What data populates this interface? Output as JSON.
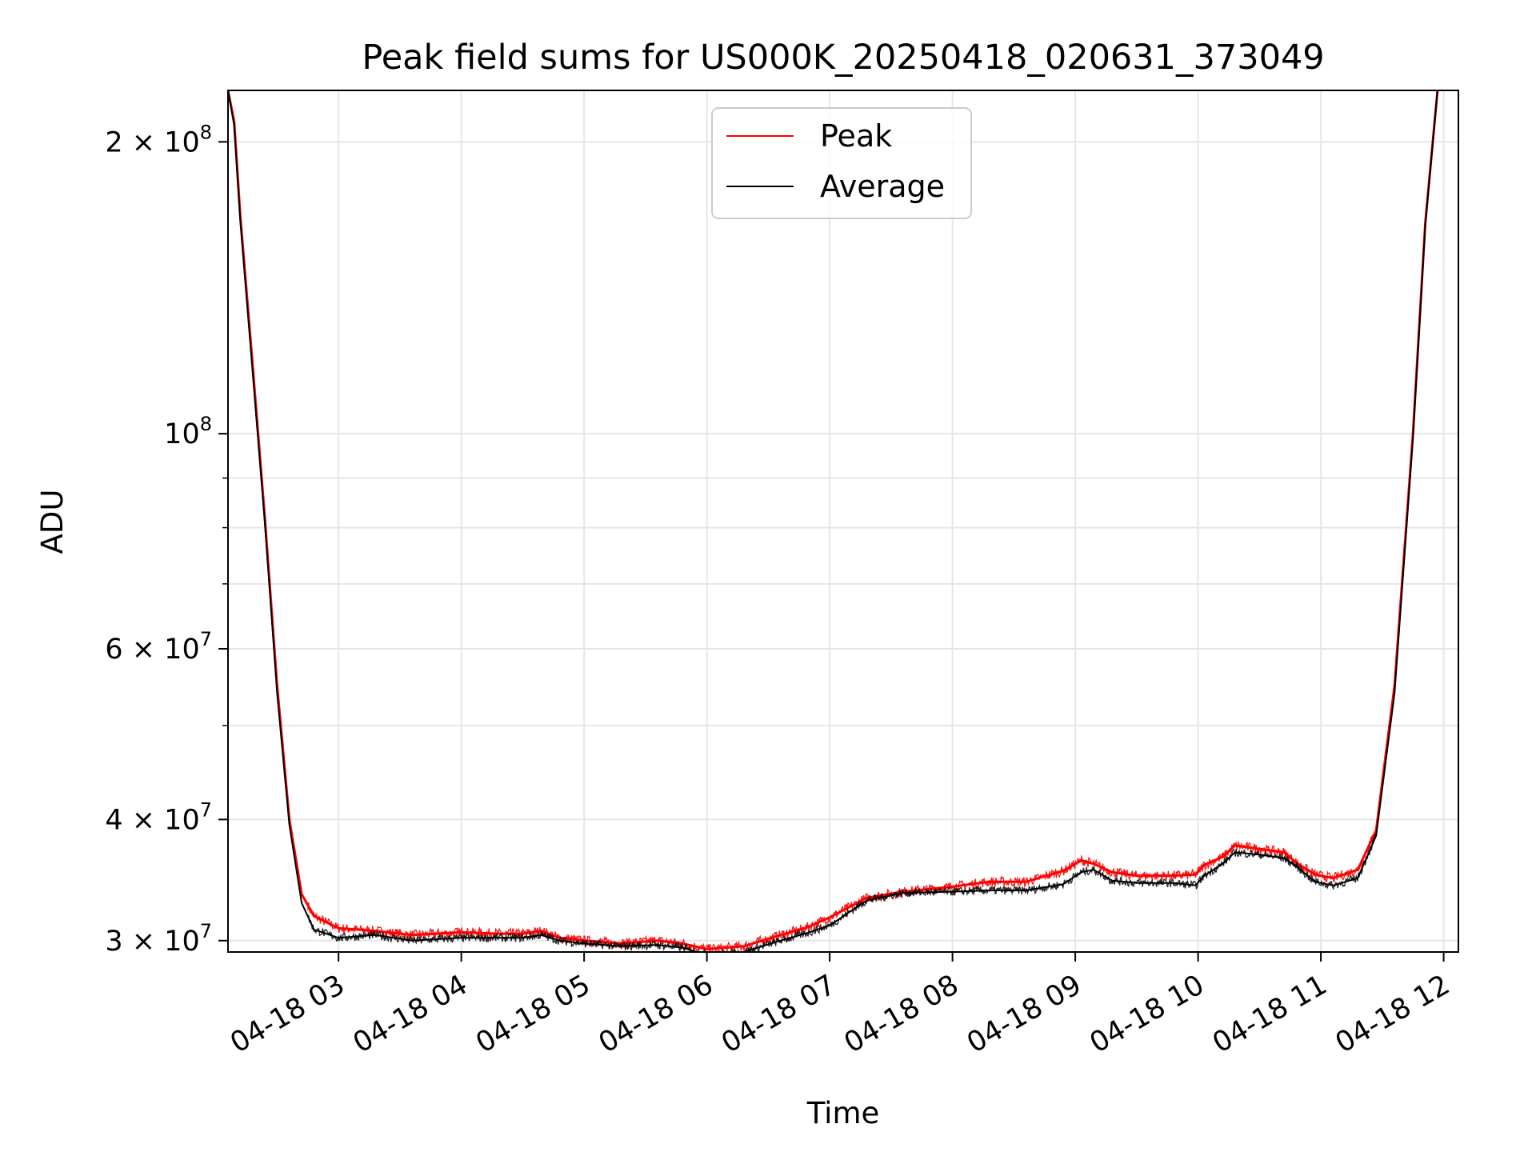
{
  "chart_data": {
    "type": "line",
    "title": "Peak field sums for US000K_20250418_020631_373049",
    "xlabel": "Time",
    "ylabel": "ADU",
    "yscale": "log",
    "grid": true,
    "legend_position": "top-center",
    "x_tick_labels": [
      "04-18 03",
      "04-18 04",
      "04-18 05",
      "04-18 06",
      "04-18 07",
      "04-18 08",
      "04-18 09",
      "04-18 10",
      "04-18 11",
      "04-18 12"
    ],
    "x_ticks_hours": [
      3,
      4,
      5,
      6,
      7,
      8,
      9,
      10,
      11,
      12
    ],
    "xlim_hours": [
      2.1,
      12.12
    ],
    "ylim": [
      29200000,
      226000000
    ],
    "y_major_ticks": [
      {
        "value": 30000000,
        "mantissa": "3",
        "exponent": "7"
      },
      {
        "value": 40000000,
        "mantissa": "4",
        "exponent": "7"
      },
      {
        "value": 60000000,
        "mantissa": "6",
        "exponent": "7"
      },
      {
        "value": 100000000,
        "mantissa": "",
        "exponent": "8"
      },
      {
        "value": 200000000,
        "mantissa": "2",
        "exponent": "8"
      }
    ],
    "y_minor_ticks": [
      50000000,
      70000000,
      80000000,
      90000000
    ],
    "series": [
      {
        "name": "Peak",
        "color": "#ff0000",
        "x_hours": [
          2.1,
          2.15,
          2.2,
          2.3,
          2.4,
          2.5,
          2.6,
          2.7,
          2.8,
          3.0,
          3.3,
          3.6,
          4.0,
          4.3,
          4.5,
          4.65,
          4.8,
          5.0,
          5.3,
          5.6,
          5.8,
          6.0,
          6.3,
          6.6,
          6.8,
          7.0,
          7.3,
          7.6,
          8.0,
          8.3,
          8.6,
          8.9,
          9.05,
          9.15,
          9.3,
          9.5,
          9.8,
          9.98,
          10.05,
          10.2,
          10.3,
          10.5,
          10.7,
          10.8,
          10.95,
          11.1,
          11.3,
          11.45,
          11.6,
          11.75,
          11.85,
          11.95
        ],
        "y": [
          226000000,
          210000000,
          168000000,
          118000000,
          82000000,
          55000000,
          40000000,
          33500000,
          31800000,
          30900000,
          30700000,
          30400000,
          30600000,
          30500000,
          30500000,
          30700000,
          30200000,
          30000000,
          29800000,
          30000000,
          29800000,
          29400000,
          29600000,
          30400000,
          30900000,
          31700000,
          33200000,
          33700000,
          34100000,
          34500000,
          34500000,
          35400000,
          36300000,
          36000000,
          35300000,
          35000000,
          35000000,
          35100000,
          35900000,
          36600000,
          37600000,
          37300000,
          37000000,
          36100000,
          35100000,
          34800000,
          35500000,
          39000000,
          55000000,
          100000000,
          165000000,
          226000000
        ]
      },
      {
        "name": "Average",
        "color": "#000000",
        "x_hours": [
          2.1,
          2.15,
          2.2,
          2.3,
          2.4,
          2.5,
          2.6,
          2.7,
          2.8,
          3.0,
          3.3,
          3.6,
          4.0,
          4.3,
          4.5,
          4.65,
          4.8,
          5.0,
          5.3,
          5.6,
          5.8,
          6.0,
          6.3,
          6.6,
          6.8,
          7.0,
          7.3,
          7.6,
          8.0,
          8.3,
          8.6,
          8.9,
          9.05,
          9.15,
          9.3,
          9.5,
          9.8,
          9.98,
          10.05,
          10.2,
          10.3,
          10.5,
          10.7,
          10.8,
          10.95,
          11.1,
          11.3,
          11.45,
          11.6,
          11.75,
          11.85,
          11.95
        ],
        "y": [
          226000000,
          208000000,
          166000000,
          116000000,
          81000000,
          54000000,
          39500000,
          32800000,
          30800000,
          30200000,
          30400000,
          30000000,
          30200000,
          30200000,
          30200000,
          30400000,
          30000000,
          29800000,
          29600000,
          29700000,
          29500000,
          29000000,
          29200000,
          30000000,
          30500000,
          31100000,
          33000000,
          33600000,
          33700000,
          33800000,
          33800000,
          34300000,
          35300000,
          35500000,
          34600000,
          34400000,
          34400000,
          34200000,
          35000000,
          36000000,
          37000000,
          36800000,
          36500000,
          35800000,
          34500000,
          34200000,
          34800000,
          38500000,
          54000000,
          99000000,
          164000000,
          226000000
        ]
      }
    ]
  }
}
